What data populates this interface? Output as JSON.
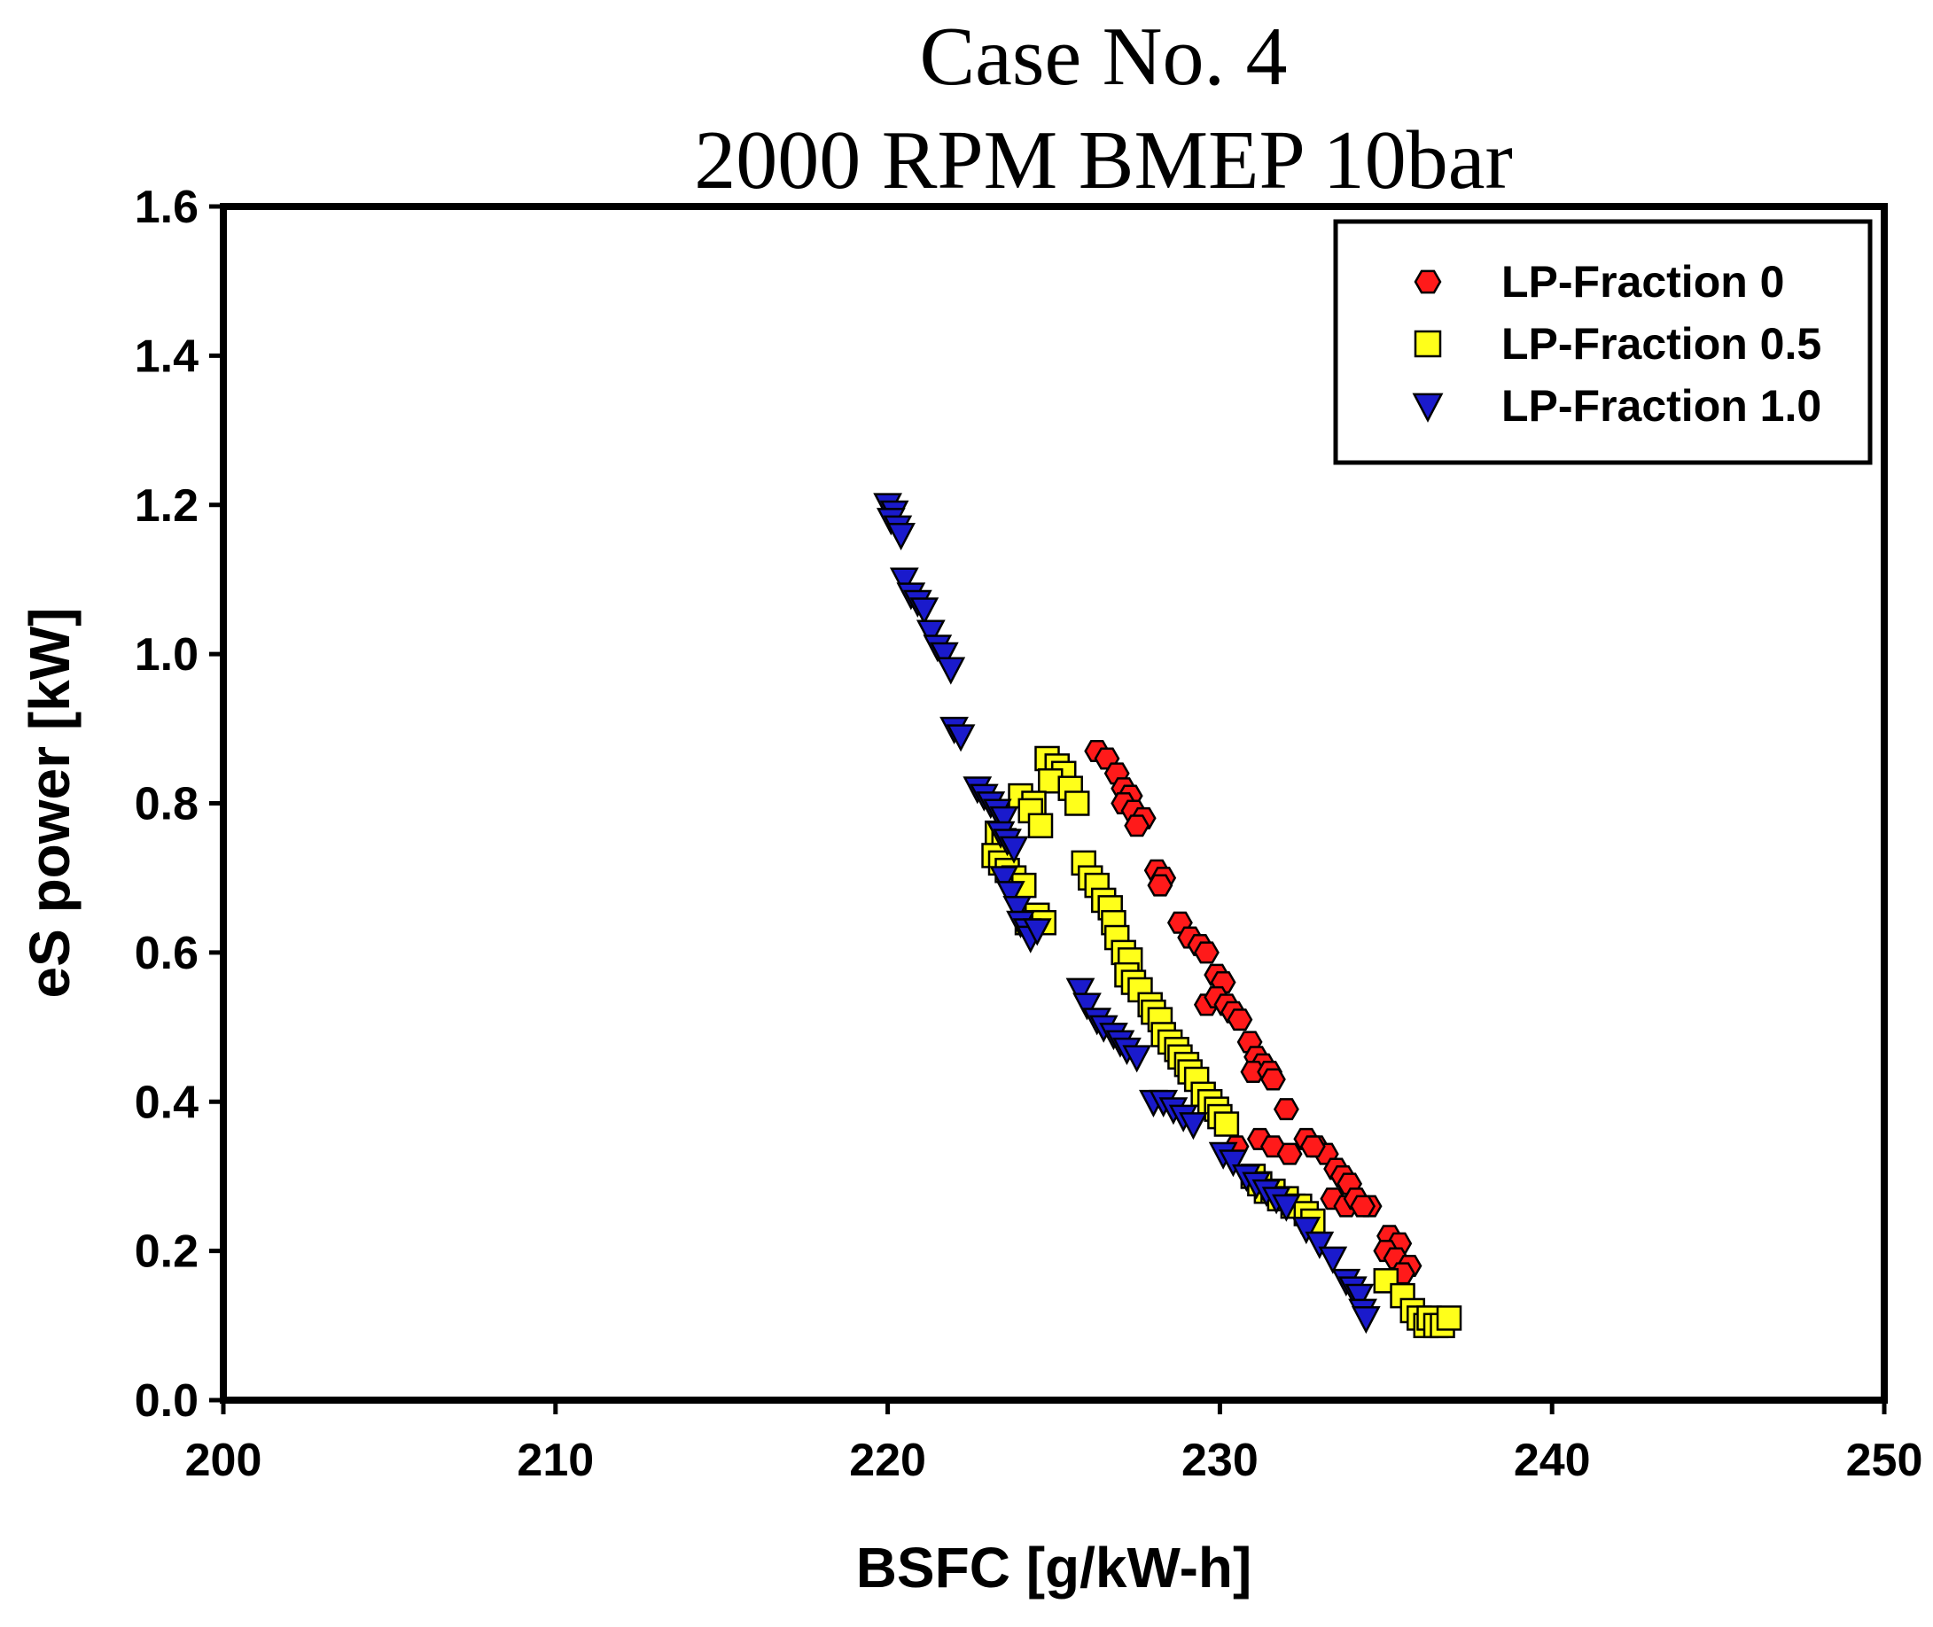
{
  "chart_data": {
    "type": "scatter",
    "title": "Case No. 4",
    "subtitle": "2000 RPM BMEP 10bar",
    "xlabel": "BSFC [g/kW-h]",
    "ylabel": "eS power [kW]",
    "xlim": [
      200,
      250
    ],
    "ylim": [
      0.0,
      1.6
    ],
    "xticks": [
      "200",
      "210",
      "220",
      "230",
      "240",
      "250"
    ],
    "yticks": [
      "0.0",
      "0.2",
      "0.4",
      "0.6",
      "0.8",
      "1.0",
      "1.2",
      "1.4",
      "1.6"
    ],
    "grid": false,
    "legend_position": "top-right",
    "series": [
      {
        "name": "LP-Fraction 0",
        "marker": "hexagon",
        "color": "#ff1a1a",
        "points": [
          [
            226.3,
            0.87
          ],
          [
            226.6,
            0.86
          ],
          [
            226.9,
            0.84
          ],
          [
            227.1,
            0.82
          ],
          [
            227.3,
            0.81
          ],
          [
            227.1,
            0.8
          ],
          [
            227.4,
            0.79
          ],
          [
            227.7,
            0.78
          ],
          [
            227.5,
            0.77
          ],
          [
            228.1,
            0.71
          ],
          [
            228.3,
            0.7
          ],
          [
            228.2,
            0.69
          ],
          [
            228.8,
            0.64
          ],
          [
            229.1,
            0.62
          ],
          [
            229.4,
            0.61
          ],
          [
            229.6,
            0.6
          ],
          [
            229.9,
            0.57
          ],
          [
            230.1,
            0.56
          ],
          [
            229.6,
            0.53
          ],
          [
            229.9,
            0.54
          ],
          [
            230.2,
            0.53
          ],
          [
            230.4,
            0.52
          ],
          [
            230.6,
            0.51
          ],
          [
            230.9,
            0.48
          ],
          [
            231.1,
            0.46
          ],
          [
            231.3,
            0.45
          ],
          [
            231.0,
            0.44
          ],
          [
            231.5,
            0.44
          ],
          [
            231.6,
            0.43
          ],
          [
            232.0,
            0.39
          ],
          [
            231.2,
            0.35
          ],
          [
            230.5,
            0.34
          ],
          [
            231.6,
            0.34
          ],
          [
            232.1,
            0.33
          ],
          [
            232.6,
            0.35
          ],
          [
            232.9,
            0.34
          ],
          [
            233.2,
            0.33
          ],
          [
            232.8,
            0.34
          ],
          [
            233.5,
            0.31
          ],
          [
            233.7,
            0.3
          ],
          [
            233.9,
            0.29
          ],
          [
            233.4,
            0.27
          ],
          [
            233.8,
            0.26
          ],
          [
            234.1,
            0.27
          ],
          [
            234.5,
            0.26
          ],
          [
            234.3,
            0.26
          ],
          [
            235.1,
            0.22
          ],
          [
            235.4,
            0.21
          ],
          [
            235.0,
            0.2
          ],
          [
            235.3,
            0.19
          ],
          [
            235.7,
            0.18
          ],
          [
            235.5,
            0.17
          ]
        ]
      },
      {
        "name": "LP-Fraction 0.5",
        "marker": "square",
        "color": "#ffff1a",
        "points": [
          [
            224.8,
            0.86
          ],
          [
            225.1,
            0.85
          ],
          [
            225.3,
            0.84
          ],
          [
            224.9,
            0.83
          ],
          [
            225.5,
            0.82
          ],
          [
            224.0,
            0.81
          ],
          [
            224.4,
            0.8
          ],
          [
            225.7,
            0.8
          ],
          [
            224.3,
            0.79
          ],
          [
            224.6,
            0.77
          ],
          [
            223.3,
            0.76
          ],
          [
            223.5,
            0.75
          ],
          [
            223.2,
            0.73
          ],
          [
            223.4,
            0.72
          ],
          [
            223.6,
            0.71
          ],
          [
            223.8,
            0.7
          ],
          [
            224.1,
            0.69
          ],
          [
            224.5,
            0.65
          ],
          [
            224.2,
            0.64
          ],
          [
            224.7,
            0.64
          ],
          [
            225.9,
            0.72
          ],
          [
            226.1,
            0.7
          ],
          [
            226.3,
            0.69
          ],
          [
            226.5,
            0.67
          ],
          [
            226.7,
            0.66
          ],
          [
            226.8,
            0.64
          ],
          [
            226.9,
            0.62
          ],
          [
            227.1,
            0.6
          ],
          [
            227.3,
            0.59
          ],
          [
            227.2,
            0.57
          ],
          [
            227.4,
            0.56
          ],
          [
            227.6,
            0.55
          ],
          [
            227.9,
            0.53
          ],
          [
            228.0,
            0.52
          ],
          [
            228.2,
            0.51
          ],
          [
            228.3,
            0.49
          ],
          [
            228.5,
            0.48
          ],
          [
            228.7,
            0.47
          ],
          [
            228.8,
            0.46
          ],
          [
            229.0,
            0.45
          ],
          [
            229.1,
            0.44
          ],
          [
            229.3,
            0.43
          ],
          [
            229.5,
            0.41
          ],
          [
            229.7,
            0.4
          ],
          [
            229.9,
            0.39
          ],
          [
            230.0,
            0.38
          ],
          [
            230.2,
            0.37
          ],
          [
            231.0,
            0.3
          ],
          [
            231.2,
            0.29
          ],
          [
            231.4,
            0.28
          ],
          [
            231.6,
            0.28
          ],
          [
            231.8,
            0.27
          ],
          [
            232.0,
            0.27
          ],
          [
            232.2,
            0.26
          ],
          [
            232.4,
            0.26
          ],
          [
            232.6,
            0.25
          ],
          [
            232.8,
            0.24
          ],
          [
            235.0,
            0.16
          ],
          [
            235.5,
            0.14
          ],
          [
            235.8,
            0.12
          ],
          [
            236.0,
            0.11
          ],
          [
            236.2,
            0.1
          ],
          [
            236.3,
            0.11
          ],
          [
            236.5,
            0.1
          ],
          [
            236.7,
            0.1
          ],
          [
            236.9,
            0.11
          ]
        ]
      },
      {
        "name": "LP-Fraction 1.0",
        "marker": "triangle-down",
        "color": "#1a1acc",
        "points": [
          [
            220.0,
            1.2
          ],
          [
            220.2,
            1.19
          ],
          [
            220.1,
            1.18
          ],
          [
            220.3,
            1.17
          ],
          [
            220.4,
            1.16
          ],
          [
            220.5,
            1.1
          ],
          [
            220.7,
            1.08
          ],
          [
            220.9,
            1.07
          ],
          [
            221.1,
            1.06
          ],
          [
            221.3,
            1.03
          ],
          [
            221.5,
            1.01
          ],
          [
            221.7,
            1.0
          ],
          [
            221.9,
            0.98
          ],
          [
            222.0,
            0.9
          ],
          [
            222.2,
            0.89
          ],
          [
            222.7,
            0.82
          ],
          [
            222.9,
            0.81
          ],
          [
            223.1,
            0.8
          ],
          [
            223.3,
            0.79
          ],
          [
            223.5,
            0.78
          ],
          [
            223.4,
            0.76
          ],
          [
            223.6,
            0.75
          ],
          [
            223.8,
            0.74
          ],
          [
            223.5,
            0.7
          ],
          [
            223.7,
            0.68
          ],
          [
            223.9,
            0.66
          ],
          [
            224.0,
            0.64
          ],
          [
            224.2,
            0.63
          ],
          [
            224.3,
            0.62
          ],
          [
            224.5,
            0.63
          ],
          [
            225.8,
            0.55
          ],
          [
            226.0,
            0.53
          ],
          [
            226.3,
            0.51
          ],
          [
            226.5,
            0.5
          ],
          [
            226.8,
            0.49
          ],
          [
            227.0,
            0.48
          ],
          [
            227.2,
            0.47
          ],
          [
            227.5,
            0.46
          ],
          [
            228.0,
            0.4
          ],
          [
            228.3,
            0.4
          ],
          [
            228.6,
            0.39
          ],
          [
            228.9,
            0.38
          ],
          [
            229.2,
            0.37
          ],
          [
            230.1,
            0.33
          ],
          [
            230.4,
            0.32
          ],
          [
            230.8,
            0.3
          ],
          [
            231.1,
            0.29
          ],
          [
            231.4,
            0.28
          ],
          [
            231.7,
            0.27
          ],
          [
            232.0,
            0.26
          ],
          [
            232.6,
            0.23
          ],
          [
            233.0,
            0.21
          ],
          [
            233.4,
            0.19
          ],
          [
            233.8,
            0.16
          ],
          [
            234.0,
            0.15
          ],
          [
            234.2,
            0.14
          ],
          [
            234.3,
            0.12
          ],
          [
            234.4,
            0.11
          ]
        ]
      }
    ]
  }
}
